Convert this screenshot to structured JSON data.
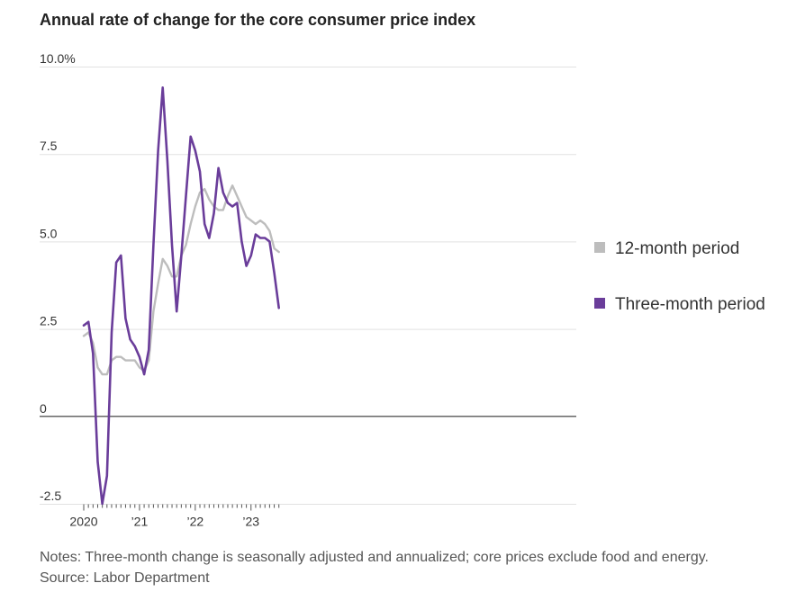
{
  "chart_data": {
    "type": "line",
    "title": "Annual rate of change for the core consumer price index",
    "ylim": [
      -2.5,
      10
    ],
    "y_ticks": [
      {
        "value": 10,
        "label": "10.0%"
      },
      {
        "value": 7.5,
        "label": "7.5"
      },
      {
        "value": 5,
        "label": "5.0"
      },
      {
        "value": 2.5,
        "label": "2.5"
      },
      {
        "value": 0,
        "label": "0"
      },
      {
        "value": -2.5,
        "label": "-2.5"
      }
    ],
    "x_labels": [
      {
        "month": 0,
        "label": "2020"
      },
      {
        "month": 12,
        "label": "’21"
      },
      {
        "month": 24,
        "label": "’22"
      },
      {
        "month": 36,
        "label": "’23"
      }
    ],
    "x_month_count": 43,
    "series": [
      {
        "name": "12-month period",
        "color": "#bdbdbd",
        "values": [
          2.3,
          2.4,
          2.1,
          1.4,
          1.2,
          1.2,
          1.6,
          1.7,
          1.7,
          1.6,
          1.6,
          1.6,
          1.4,
          1.3,
          1.6,
          3.0,
          3.8,
          4.5,
          4.3,
          4.0,
          4.0,
          4.6,
          4.9,
          5.5,
          6.0,
          6.4,
          6.5,
          6.2,
          6.0,
          5.9,
          5.9,
          6.3,
          6.6,
          6.3,
          6.0,
          5.7,
          5.6,
          5.5,
          5.6,
          5.5,
          5.3,
          4.8,
          4.7
        ]
      },
      {
        "name": "Three-month period",
        "color": "#6a3d9a",
        "values": [
          2.6,
          2.7,
          1.8,
          -1.3,
          -2.5,
          -1.7,
          2.4,
          4.4,
          4.6,
          2.8,
          2.2,
          2.0,
          1.7,
          1.2,
          1.9,
          4.9,
          7.6,
          9.4,
          7.3,
          4.9,
          3.0,
          4.6,
          6.3,
          8.0,
          7.6,
          7.0,
          5.5,
          5.1,
          5.8,
          7.1,
          6.4,
          6.1,
          6.0,
          6.1,
          5.0,
          4.3,
          4.6,
          5.2,
          5.1,
          5.1,
          5.0,
          4.1,
          3.1
        ]
      }
    ],
    "legend_placement": "right"
  },
  "notes": "Notes: Three-month change is seasonally adjusted and annualized; core prices exclude food and energy.",
  "source": "Source: Labor Department"
}
